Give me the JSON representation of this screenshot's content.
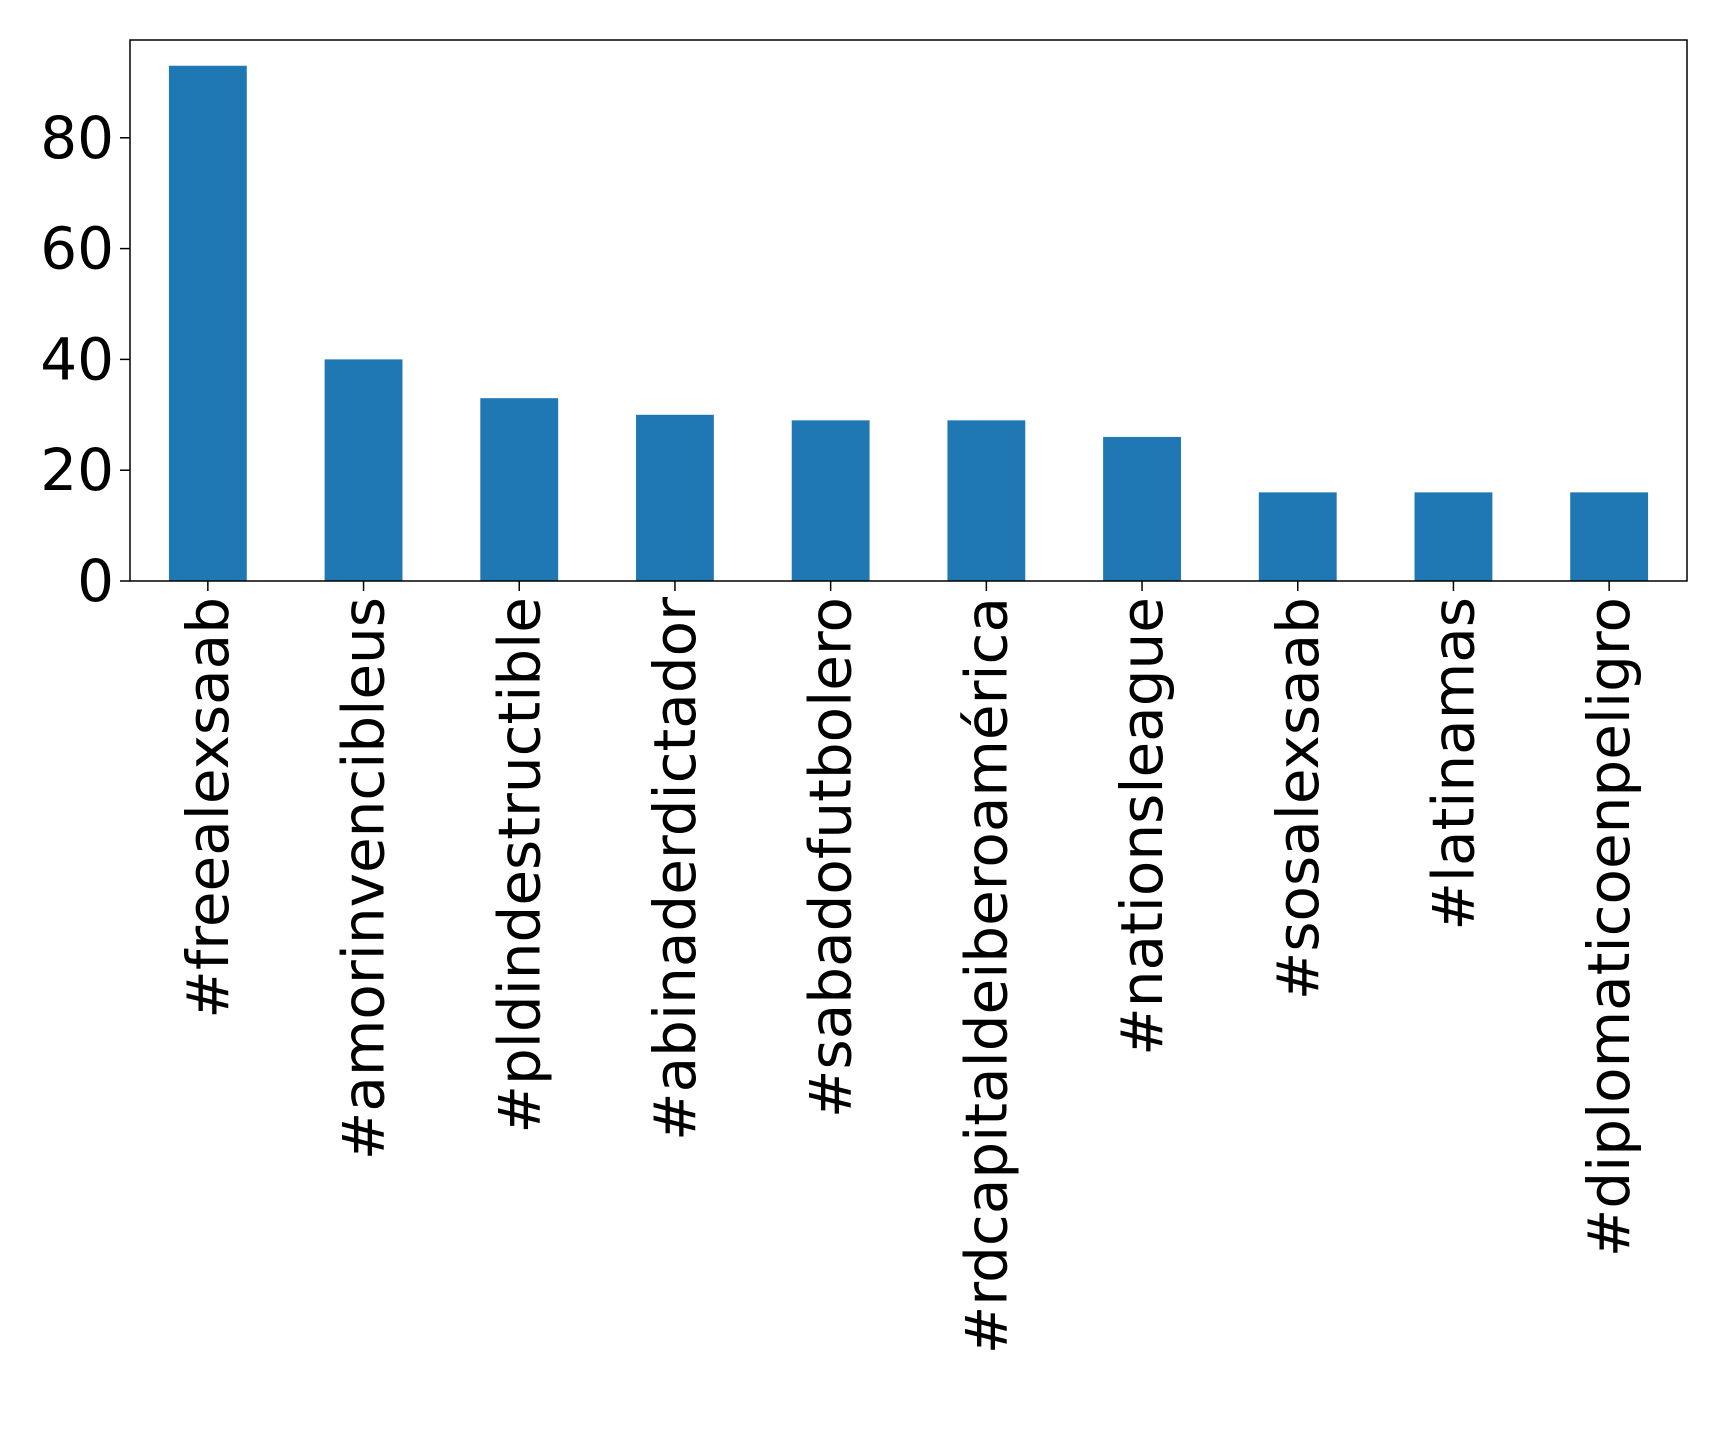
{
  "chart_data": {
    "type": "bar",
    "categories": [
      "#freealexsaab",
      "#amorinvencibleus",
      "#pldindestructible",
      "#abinaderdictador",
      "#sabadofutbolero",
      "#rdcapitaldeiberoamérica",
      "#nationsleague",
      "#sosalexsaab",
      "#latinamas",
      "#diplomaticoenpeligro"
    ],
    "values": [
      93,
      40,
      33,
      30,
      29,
      29,
      26,
      16,
      16,
      16
    ],
    "color": "#1f77b4",
    "ylim": [
      0,
      97.65
    ],
    "yticks": [
      0,
      20,
      40,
      60,
      80
    ],
    "grid": false
  }
}
